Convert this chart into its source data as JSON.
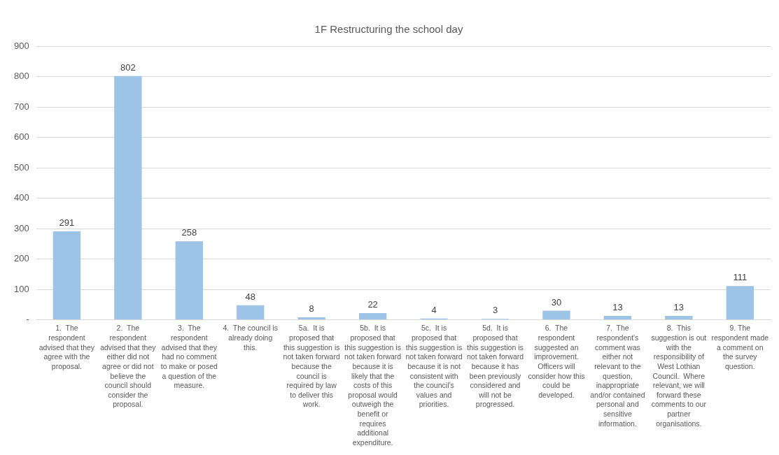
{
  "chart_data": {
    "type": "bar",
    "title": "1F Restructuring the school day",
    "categories": [
      "1.  The respondent advised that they agree with the proposal.",
      "2.  The respondent advised that they either did not agree or did not believe the council should consider the proposal.",
      "3.  The respondent advised that they had no comment to make or posed a question of the measure.",
      "4.  The council is already doing this.",
      "5a.  It is proposed that this suggestion is not taken forward because the council is required by law to deliver this work.",
      "5b.  It is proposed that this suggestion is not taken forward because it is likely that the costs of this proposal would outweigh the benefit or requires additional expenditure.",
      "5c.  It is proposed that this suggestion is not taken forward because it is not consistent with the council’s values and priorities.",
      "5d.  It is proposed that this suggestion is not taken forward because it has been previously considered and will not be progressed.",
      "6.  The respondent suggested an improvement. Officers will consider how this could be developed.",
      "7.  The respondent's comment was either not relevant to the question, inappropriate and/or contained personal and sensitive information.",
      "8.  This suggestion is out with the responsibility of West Lothian Council.  Where relevant, we will forward these comments to our partner organisations.",
      "9. The respondent made a comment on the survey question."
    ],
    "values": [
      291,
      802,
      258,
      48,
      8,
      22,
      4,
      3,
      30,
      13,
      13,
      111
    ],
    "color": "#9dc3e6",
    "ylim": [
      0,
      900
    ],
    "yticks": [
      {
        "value": 0,
        "label": "-"
      },
      100,
      200,
      300,
      400,
      500,
      600,
      700,
      800,
      900
    ],
    "grid": "y",
    "legend": false,
    "data_labels": true
  }
}
